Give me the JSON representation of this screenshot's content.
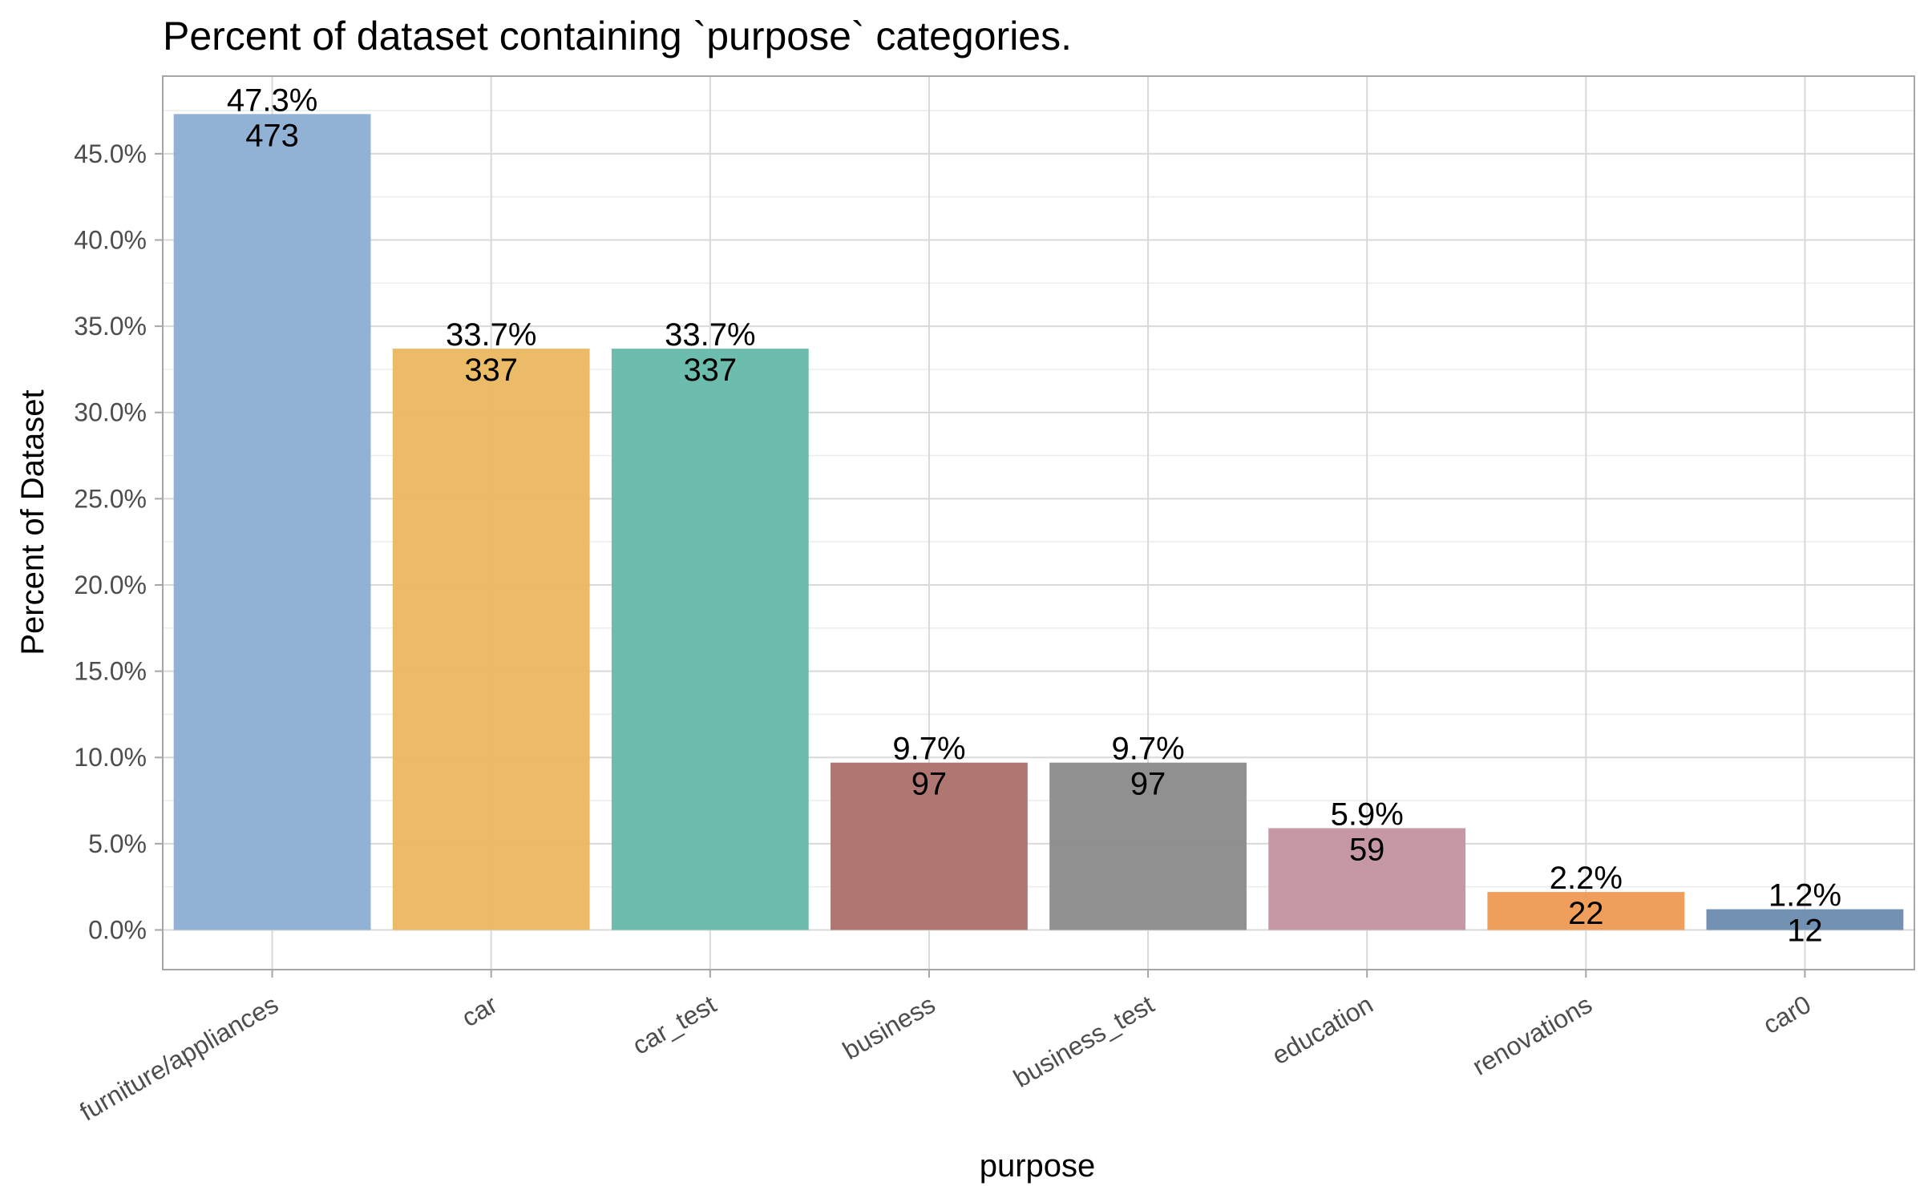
{
  "chart_data": {
    "type": "bar",
    "title": "Percent of dataset containing `purpose` categories.",
    "xlabel": "purpose",
    "ylabel": "Percent of Dataset",
    "ylim": [
      -0.023,
      0.495
    ],
    "y_ticks": [
      0.0,
      0.05,
      0.1,
      0.15,
      0.2,
      0.25,
      0.3,
      0.35,
      0.4,
      0.45
    ],
    "y_tick_labels": [
      "0.0%",
      "5.0%",
      "10.0%",
      "15.0%",
      "20.0%",
      "25.0%",
      "30.0%",
      "35.0%",
      "40.0%",
      "45.0%"
    ],
    "grid": true,
    "legend": "none",
    "categories": [
      "furniture/appliances",
      "car",
      "car_test",
      "business",
      "business_test",
      "education",
      "renovations",
      "car0"
    ],
    "values": [
      0.473,
      0.337,
      0.337,
      0.097,
      0.097,
      0.059,
      0.022,
      0.012
    ],
    "counts": [
      473,
      337,
      337,
      97,
      97,
      59,
      22,
      12
    ],
    "percent_labels": [
      "47.3%",
      "33.7%",
      "33.7%",
      "9.7%",
      "9.7%",
      "5.9%",
      "2.2%",
      "1.2%"
    ],
    "count_labels": [
      "473",
      "337",
      "337",
      "97",
      "97",
      "59",
      "22",
      "12"
    ],
    "colors": [
      "#8db0d4",
      "#ebb963",
      "#68bbab",
      "#ad736d",
      "#8c8c8c",
      "#c494a2",
      "#ee9c56",
      "#6e8db0"
    ]
  }
}
